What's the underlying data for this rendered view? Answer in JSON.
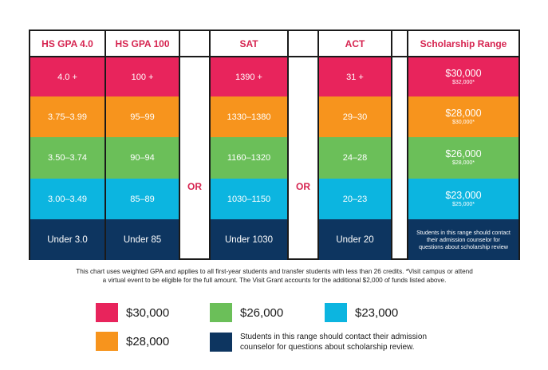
{
  "headers": {
    "gpa4": "HS GPA 4.0",
    "gpa100": "HS GPA 100",
    "sat": "SAT",
    "act": "ACT",
    "scholarship": "Scholarship Range"
  },
  "or_labels": [
    "OR",
    "OR"
  ],
  "rows": [
    {
      "gpa4": "4.0 +",
      "gpa100": "100 +",
      "sat": "1390 +",
      "act": "31 +",
      "amount": "$30,000",
      "visit": "$32,000*",
      "color": "#e8245c"
    },
    {
      "gpa4": "3.75–3.99",
      "gpa100": "95–99",
      "sat": "1330–1380",
      "act": "29–30",
      "amount": "$28,000",
      "visit": "$30,000*",
      "color": "#f7941d"
    },
    {
      "gpa4": "3.50–3.74",
      "gpa100": "90–94",
      "sat": "1160–1320",
      "act": "24–28",
      "amount": "$26,000",
      "visit": "$28,000*",
      "color": "#6bbf59"
    },
    {
      "gpa4": "3.00–3.49",
      "gpa100": "85–89",
      "sat": "1030–1150",
      "act": "20–23",
      "amount": "$23,000",
      "visit": "$25,000*",
      "color": "#0cb5e0"
    },
    {
      "gpa4": "Under 3.0",
      "gpa100": "Under 85",
      "sat": "Under 1030",
      "act": "Under 20",
      "note": "Students in this range should contact their admission counselor for questions about scholarship review",
      "color": "#0d3560"
    }
  ],
  "footnote": {
    "line1": "This chart uses weighted GPA and applies to all first-year students and transfer students with less than 26 credits. *Visit campus or attend",
    "line2": "a virtual event to be eligible for the full amount. The Visit Grant accounts for the additional $2,000 of funds listed above."
  },
  "legend": {
    "item_30000": {
      "label": "$30,000",
      "color": "#e8245c"
    },
    "item_26000": {
      "label": "$26,000",
      "color": "#6bbf59"
    },
    "item_23000": {
      "label": "$23,000",
      "color": "#0cb5e0"
    },
    "item_28000": {
      "label": "$28,000",
      "color": "#f7941d"
    },
    "item_contact": {
      "label": "Students in this range should contact their admission counselor for questions about scholarship review.",
      "color": "#0d3560"
    }
  }
}
